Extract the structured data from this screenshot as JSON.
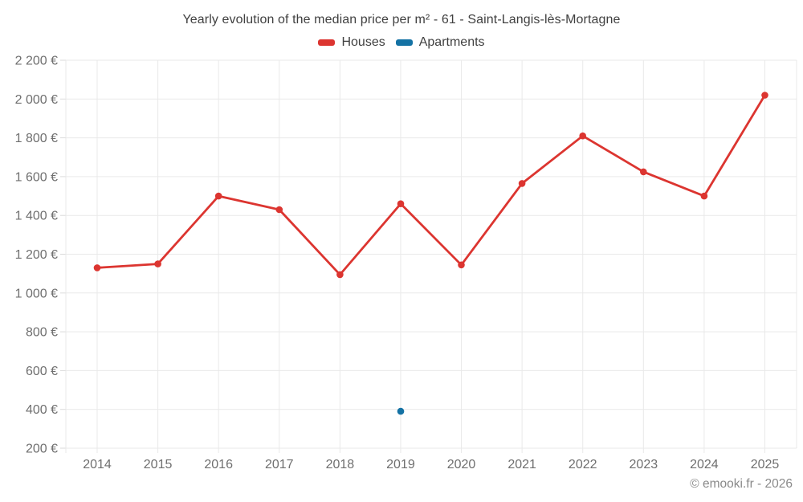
{
  "title": "Yearly evolution of the median price per m² - 61 - Saint-Langis-lès-Mortagne",
  "legend": [
    {
      "label": "Houses",
      "color": "#dc3530"
    },
    {
      "label": "Apartments",
      "color": "#1472a4"
    }
  ],
  "footer": {
    "copyright": "© emooki.fr - 2026"
  },
  "chart_data": {
    "type": "line",
    "title": "Yearly evolution of the median price per m² - 61 - Saint-Langis-lès-Mortagne",
    "categories": [
      "2014",
      "2015",
      "2016",
      "2017",
      "2018",
      "2019",
      "2020",
      "2021",
      "2022",
      "2023",
      "2024",
      "2025"
    ],
    "series": [
      {
        "name": "Houses",
        "color": "#dc3530",
        "values": [
          1130,
          1150,
          1500,
          1430,
          1095,
          1460,
          1145,
          1565,
          1810,
          1625,
          1500,
          2020
        ]
      },
      {
        "name": "Apartments",
        "color": "#1472a4",
        "values": [
          null,
          null,
          null,
          null,
          null,
          390,
          null,
          null,
          null,
          null,
          null,
          null
        ]
      }
    ],
    "xlabel": "",
    "ylabel": "",
    "ylim": [
      200,
      2200
    ],
    "ytick_step": 200,
    "ytick_values": [
      200,
      400,
      600,
      800,
      1000,
      1200,
      1400,
      1600,
      1800,
      2000,
      2200
    ],
    "ytick_labels": [
      "200 €",
      "400 €",
      "600 €",
      "800 €",
      "1 000 €",
      "1 200 €",
      "1 400 €",
      "1 600 €",
      "1 800 €",
      "2 000 €",
      "2 200 €"
    ],
    "currency_unit": "€",
    "grid": true,
    "legend_position": "top"
  }
}
